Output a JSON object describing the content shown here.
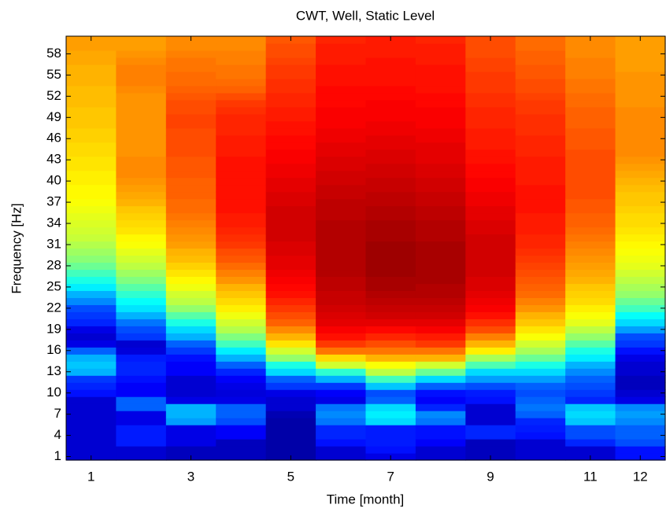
{
  "chart_data": {
    "type": "heatmap",
    "title": "CWT, Well, Static Level",
    "xlabel": "Time [month]",
    "ylabel": "Frequency [Hz]",
    "colormap": "jet",
    "clim": [
      0,
      100
    ],
    "x": [
      1,
      2,
      3,
      4,
      5,
      6,
      7,
      8,
      9,
      10,
      11,
      12
    ],
    "y": [
      1,
      2,
      3,
      4,
      5,
      6,
      7,
      8,
      9,
      10,
      11,
      12,
      13,
      14,
      15,
      16,
      17,
      18,
      19,
      20,
      21,
      22,
      23,
      24,
      25,
      26,
      27,
      28,
      29,
      30,
      31,
      32,
      33,
      34,
      35,
      36,
      37,
      38,
      39,
      40,
      41,
      42,
      43,
      44,
      45,
      46,
      47,
      48,
      49,
      50,
      51,
      52,
      53,
      54,
      55,
      56,
      57,
      58,
      59,
      60
    ],
    "xlim": [
      0.5,
      12.5
    ],
    "ylim": [
      0.5,
      60.5
    ],
    "xticks": [
      1,
      3,
      5,
      7,
      9,
      11,
      12
    ],
    "yticks": [
      1,
      4,
      7,
      10,
      13,
      16,
      19,
      22,
      25,
      28,
      31,
      34,
      37,
      40,
      43,
      46,
      49,
      52,
      55,
      58
    ],
    "values": [
      [
        8,
        8,
        8,
        8,
        8,
        8,
        8,
        8,
        8,
        14,
        16,
        18,
        30,
        32,
        30,
        22,
        10,
        8,
        10,
        16,
        18,
        20,
        26,
        30,
        36,
        40,
        44,
        48,
        51,
        53,
        55,
        57,
        58,
        59,
        60,
        61,
        62,
        63,
        63,
        64,
        64,
        65,
        65,
        66,
        66,
        67,
        67,
        68,
        68,
        68,
        69,
        69,
        69,
        70,
        70,
        70,
        71,
        71,
        72,
        72
      ],
      [
        8,
        8,
        15,
        15,
        15,
        10,
        10,
        22,
        22,
        12,
        12,
        14,
        16,
        16,
        15,
        9,
        8,
        18,
        20,
        24,
        30,
        35,
        38,
        42,
        46,
        50,
        53,
        56,
        58,
        60,
        62,
        63,
        65,
        66,
        67,
        68,
        70,
        71,
        72,
        73,
        74,
        74,
        74,
        73,
        73,
        73,
        73,
        73,
        73,
        73,
        73,
        73,
        74,
        75,
        75,
        75,
        74,
        73,
        72,
        72
      ],
      [
        6,
        6,
        10,
        10,
        10,
        28,
        30,
        30,
        10,
        8,
        8,
        8,
        12,
        12,
        14,
        18,
        22,
        30,
        34,
        40,
        46,
        52,
        56,
        58,
        61,
        63,
        65,
        67,
        69,
        70,
        72,
        73,
        74,
        75,
        76,
        77,
        77,
        78,
        78,
        78,
        79,
        79,
        79,
        80,
        80,
        80,
        80,
        81,
        81,
        80,
        80,
        79,
        78,
        77,
        77,
        76,
        76,
        75,
        74,
        74
      ],
      [
        6,
        6,
        6,
        12,
        12,
        20,
        22,
        22,
        10,
        9,
        10,
        12,
        16,
        22,
        30,
        36,
        44,
        50,
        55,
        58,
        61,
        64,
        66,
        68,
        70,
        73,
        75,
        77,
        79,
        80,
        82,
        83,
        84,
        85,
        85,
        86,
        86,
        86,
        86,
        86,
        86,
        86,
        86,
        85,
        85,
        85,
        84,
        84,
        84,
        83,
        82,
        80,
        78,
        77,
        76,
        76,
        75,
        75,
        74,
        74
      ],
      [
        4,
        4,
        4,
        4,
        4,
        4,
        5,
        8,
        8,
        10,
        18,
        22,
        34,
        40,
        52,
        58,
        65,
        70,
        74,
        78,
        80,
        82,
        84,
        86,
        87,
        88,
        89,
        90,
        90,
        91,
        91,
        92,
        92,
        92,
        92,
        92,
        91,
        91,
        90,
        90,
        89,
        89,
        88,
        88,
        87,
        87,
        86,
        86,
        85,
        85,
        84,
        84,
        83,
        83,
        82,
        82,
        81,
        80,
        80,
        79
      ],
      [
        8,
        8,
        14,
        16,
        16,
        24,
        26,
        24,
        10,
        12,
        18,
        30,
        42,
        58,
        66,
        76,
        82,
        86,
        88,
        90,
        91,
        92,
        93,
        93,
        94,
        94,
        95,
        95,
        95,
        95,
        95,
        95,
        95,
        95,
        94,
        94,
        94,
        93,
        93,
        92,
        92,
        91,
        91,
        90,
        90,
        89,
        89,
        88,
        88,
        88,
        87,
        87,
        87,
        86,
        86,
        86,
        85,
        85,
        85,
        84
      ],
      [
        10,
        14,
        15,
        15,
        15,
        34,
        36,
        34,
        22,
        20,
        32,
        44,
        56,
        62,
        70,
        76,
        80,
        84,
        87,
        90,
        92,
        93,
        94,
        95,
        96,
        96,
        97,
        97,
        97,
        97,
        97,
        96,
        96,
        96,
        95,
        95,
        94,
        94,
        93,
        93,
        92,
        92,
        91,
        91,
        90,
        90,
        89,
        89,
        88,
        88,
        88,
        87,
        87,
        86,
        86,
        86,
        86,
        85,
        85,
        85
      ],
      [
        8,
        8,
        12,
        14,
        14,
        24,
        26,
        16,
        12,
        14,
        22,
        34,
        48,
        58,
        70,
        76,
        82,
        85,
        88,
        90,
        92,
        93,
        94,
        95,
        95,
        96,
        96,
        96,
        96,
        96,
        96,
        95,
        95,
        95,
        94,
        94,
        93,
        93,
        92,
        92,
        91,
        91,
        90,
        90,
        90,
        89,
        89,
        88,
        88,
        88,
        87,
        87,
        86,
        86,
        86,
        86,
        85,
        85,
        85,
        84
      ],
      [
        6,
        6,
        6,
        16,
        16,
        8,
        8,
        8,
        14,
        15,
        20,
        28,
        34,
        45,
        54,
        64,
        70,
        75,
        80,
        83,
        86,
        88,
        89,
        90,
        91,
        91,
        92,
        92,
        92,
        92,
        92,
        92,
        91,
        91,
        90,
        90,
        89,
        89,
        88,
        88,
        87,
        87,
        86,
        86,
        85,
        85,
        85,
        84,
        84,
        84,
        83,
        83,
        82,
        82,
        82,
        81,
        81,
        80,
        80,
        80
      ],
      [
        8,
        8,
        8,
        14,
        15,
        16,
        22,
        24,
        22,
        20,
        22,
        28,
        34,
        40,
        48,
        54,
        58,
        62,
        65,
        68,
        70,
        73,
        75,
        77,
        78,
        79,
        80,
        81,
        82,
        83,
        84,
        84,
        85,
        85,
        85,
        86,
        86,
        86,
        86,
        85,
        85,
        85,
        85,
        84,
        84,
        84,
        83,
        83,
        83,
        82,
        82,
        81,
        80,
        80,
        79,
        79,
        78,
        78,
        77,
        77
      ],
      [
        8,
        8,
        16,
        20,
        20,
        32,
        34,
        32,
        16,
        18,
        20,
        22,
        26,
        30,
        36,
        40,
        46,
        52,
        56,
        60,
        62,
        64,
        66,
        67,
        68,
        70,
        71,
        72,
        73,
        74,
        75,
        76,
        77,
        78,
        78,
        79,
        79,
        80,
        80,
        80,
        80,
        80,
        80,
        80,
        79,
        79,
        79,
        78,
        78,
        78,
        77,
        77,
        76,
        76,
        75,
        75,
        75,
        74,
        74,
        74
      ],
      [
        14,
        14,
        20,
        22,
        22,
        26,
        28,
        26,
        10,
        8,
        6,
        6,
        8,
        8,
        10,
        14,
        18,
        20,
        28,
        34,
        38,
        44,
        48,
        52,
        54,
        56,
        58,
        60,
        61,
        62,
        63,
        64,
        65,
        66,
        66,
        67,
        68,
        68,
        69,
        70,
        71,
        72,
        73,
        74,
        74,
        74,
        74,
        74,
        74,
        74,
        73,
        73,
        73,
        73,
        73,
        72,
        72,
        72,
        72,
        72
      ]
    ]
  }
}
